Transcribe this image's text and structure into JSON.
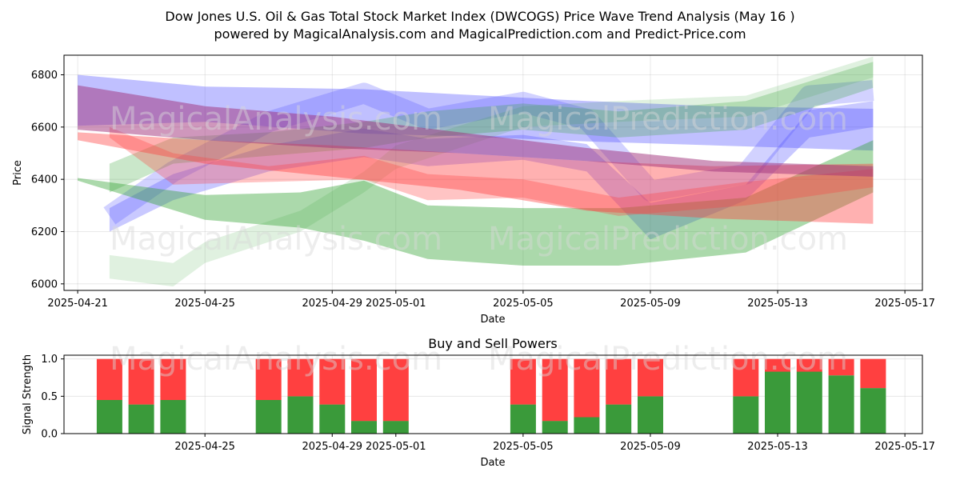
{
  "title": "Dow Jones U.S. Oil & Gas Total Stock Market Index (DWCOGS) Price Wave Trend Analysis (May 16 )",
  "subtitle": "powered by MagicalAnalysis.com and MagicalPrediction.com and Predict-Price.com",
  "watermarks": [
    "MagicalAnalysis.com",
    "MagicalPrediction.com"
  ],
  "colors": {
    "blue_band": "#4b4bff",
    "green_band": "#2ca02c",
    "red_band": "#ff3b3b",
    "purple_band": "#a0307a",
    "buy": "#3a9a3a",
    "sell": "#ff4040"
  },
  "chart_data": [
    {
      "type": "area",
      "title": "",
      "xlabel": "Date",
      "ylabel": "Price",
      "x_range": [
        "2025-04-21",
        "2025-05-17"
      ],
      "ylim": [
        5975,
        6875
      ],
      "x_ticks": [
        "2025-04-21",
        "2025-04-25",
        "2025-04-29",
        "2025-05-01",
        "2025-05-05",
        "2025-05-09",
        "2025-05-13",
        "2025-05-17"
      ],
      "y_ticks": [
        6000,
        6200,
        6400,
        6600,
        6800
      ],
      "grid": true,
      "series": [
        {
          "color": "blue_band",
          "alpha": 0.35,
          "x": [
            "2025-04-21",
            "2025-04-25",
            "2025-04-30",
            "2025-05-03",
            "2025-05-07",
            "2025-05-11",
            "2025-05-16"
          ],
          "upper": [
            6800,
            6755,
            6745,
            6725,
            6700,
            6680,
            6670
          ],
          "lower": [
            6605,
            6620,
            6575,
            6565,
            6545,
            6530,
            6510
          ]
        },
        {
          "color": "blue_band",
          "alpha": 0.3,
          "x": [
            "2025-04-22",
            "2025-04-24",
            "2025-04-27",
            "2025-04-30",
            "2025-05-02",
            "2025-05-05",
            "2025-05-07",
            "2025-05-09",
            "2025-05-12",
            "2025-05-14",
            "2025-05-16"
          ],
          "upper": [
            6290,
            6420,
            6530,
            6595,
            6555,
            6570,
            6535,
            6310,
            6380,
            6665,
            6700
          ],
          "lower": [
            6200,
            6320,
            6430,
            6485,
            6450,
            6475,
            6430,
            6170,
            6320,
            6560,
            6600
          ]
        },
        {
          "color": "blue_band",
          "alpha": 0.25,
          "x": [
            "2025-04-22",
            "2025-04-24",
            "2025-04-27",
            "2025-04-30",
            "2025-05-02",
            "2025-05-05",
            "2025-05-07",
            "2025-05-09",
            "2025-05-12",
            "2025-05-14",
            "2025-05-16"
          ],
          "upper": [
            6260,
            6430,
            6620,
            6730,
            6630,
            6695,
            6630,
            6355,
            6420,
            6720,
            6740
          ]
        },
        {
          "color": "green_band",
          "alpha": 0.4,
          "x": [
            "2025-04-21",
            "2025-04-25",
            "2025-04-28",
            "2025-04-30",
            "2025-05-02",
            "2025-05-05",
            "2025-05-08",
            "2025-05-12",
            "2025-05-16"
          ],
          "upper": [
            6405,
            6340,
            6350,
            6395,
            6300,
            6290,
            6290,
            6330,
            6550
          ],
          "lower": [
            6395,
            6245,
            6215,
            6165,
            6095,
            6070,
            6070,
            6120,
            6350
          ]
        },
        {
          "color": "green_band",
          "alpha": 0.25,
          "x": [
            "2025-04-22",
            "2025-04-24",
            "2025-04-27",
            "2025-04-30",
            "2025-05-02",
            "2025-05-05",
            "2025-05-08",
            "2025-05-12",
            "2025-05-16"
          ],
          "upper": [
            6460,
            6560,
            6580,
            6620,
            6660,
            6690,
            6660,
            6700,
            6850
          ],
          "lower": [
            6350,
            6460,
            6490,
            6520,
            6560,
            6590,
            6560,
            6590,
            6750
          ]
        },
        {
          "color": "green_band",
          "alpha": 0.15,
          "x": [
            "2025-04-22",
            "2025-04-24",
            "2025-04-25",
            "2025-04-28",
            "2025-04-30",
            "2025-05-01",
            "2025-05-05",
            "2025-05-08",
            "2025-05-12",
            "2025-05-16"
          ],
          "upper": [
            6110,
            6080,
            6160,
            6280,
            6430,
            6530,
            6680,
            6700,
            6720,
            6870
          ],
          "lower": [
            6020,
            5990,
            6080,
            6200,
            6350,
            6440,
            6600,
            6620,
            6640,
            6790
          ]
        },
        {
          "color": "red_band",
          "alpha": 0.4,
          "x": [
            "2025-04-21",
            "2025-04-25",
            "2025-04-29",
            "2025-05-03",
            "2025-05-07",
            "2025-05-11",
            "2025-05-16"
          ],
          "upper": [
            6580,
            6550,
            6530,
            6500,
            6470,
            6450,
            6460
          ],
          "lower": [
            6550,
            6460,
            6410,
            6360,
            6280,
            6250,
            6230
          ]
        },
        {
          "color": "red_band",
          "alpha": 0.3,
          "x": [
            "2025-04-22",
            "2025-04-24",
            "2025-04-27",
            "2025-04-30",
            "2025-05-02",
            "2025-05-05",
            "2025-05-08",
            "2025-05-12",
            "2025-05-16"
          ],
          "upper": [
            6600,
            6500,
            6450,
            6490,
            6420,
            6400,
            6330,
            6390,
            6440
          ],
          "lower": [
            6560,
            6380,
            6390,
            6400,
            6320,
            6330,
            6260,
            6300,
            6370
          ]
        },
        {
          "color": "purple_band",
          "alpha": 0.5,
          "x": [
            "2025-04-21",
            "2025-04-25",
            "2025-04-29",
            "2025-05-03",
            "2025-05-07",
            "2025-05-11",
            "2025-05-16"
          ],
          "upper": [
            6760,
            6680,
            6640,
            6580,
            6520,
            6470,
            6450
          ],
          "lower": [
            6590,
            6550,
            6520,
            6500,
            6470,
            6430,
            6410
          ]
        }
      ]
    },
    {
      "type": "bar",
      "title": "Buy and Sell Powers",
      "xlabel": "Date",
      "ylabel": "Signal Strength",
      "ylim": [
        0,
        1.05
      ],
      "y_ticks": [
        0.0,
        0.5,
        1.0
      ],
      "x_ticks": [
        "2025-04-25",
        "2025-04-29",
        "2025-05-01",
        "2025-05-05",
        "2025-05-09",
        "2025-05-13",
        "2025-05-17"
      ],
      "grid": true,
      "dates": [
        "2025-04-22",
        "2025-04-23",
        "2025-04-24",
        "2025-04-27",
        "2025-04-28",
        "2025-04-29",
        "2025-04-30",
        "2025-05-01",
        "2025-05-05",
        "2025-05-06",
        "2025-05-07",
        "2025-05-08",
        "2025-05-09",
        "2025-05-12",
        "2025-05-13",
        "2025-05-14",
        "2025-05-15",
        "2025-05-16"
      ],
      "series": [
        {
          "name": "buy",
          "values": [
            0.45,
            0.39,
            0.45,
            0.45,
            0.5,
            0.39,
            0.17,
            0.17,
            0.39,
            0.17,
            0.22,
            0.39,
            0.5,
            0.5,
            0.83,
            0.83,
            0.78,
            0.61
          ]
        },
        {
          "name": "sell",
          "values": [
            0.55,
            0.61,
            0.55,
            0.55,
            0.5,
            0.61,
            0.83,
            0.83,
            0.61,
            0.83,
            0.78,
            0.61,
            0.5,
            0.5,
            0.17,
            0.17,
            0.22,
            0.39
          ]
        }
      ]
    }
  ]
}
